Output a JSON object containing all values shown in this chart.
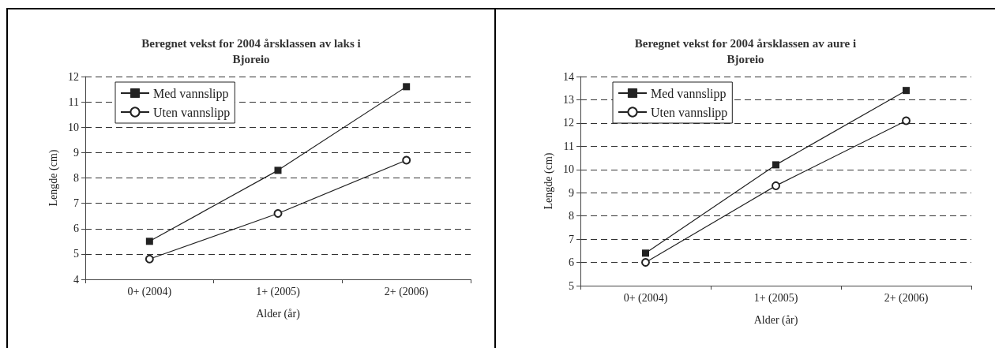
{
  "chart_data": [
    {
      "type": "line",
      "title": "Beregnet vekst for 2004 årsklassen av laks i\nBjoreio",
      "xlabel": "Alder (år)",
      "ylabel": "Lengde (cm)",
      "categories": [
        "0+ (2004)",
        "1+ (2005)",
        "2+ (2006)"
      ],
      "ylim": [
        4,
        12
      ],
      "yticks": [
        4,
        5,
        6,
        7,
        8,
        9,
        10,
        11,
        12
      ],
      "grid": "y",
      "legend": "top left",
      "line_style": "solid",
      "series": [
        {
          "name": "Med vannslipp",
          "color": "#222222",
          "marker": "square",
          "values": [
            5.5,
            8.3,
            11.6
          ]
        },
        {
          "name": "Uten vannslipp",
          "color": "#222222",
          "marker": "circle",
          "values": [
            4.8,
            6.6,
            8.7
          ]
        }
      ]
    },
    {
      "type": "line",
      "title": "Beregnet vekst for 2004 årsklassen av aure i\nBjoreio",
      "xlabel": "Alder (år)",
      "ylabel": "Lengde (cm)",
      "categories": [
        "0+ (2004)",
        "1+ (2005)",
        "2+ (2006)"
      ],
      "ylim": [
        5,
        14
      ],
      "yticks": [
        5,
        6,
        7,
        8,
        9,
        10,
        11,
        12,
        13,
        14
      ],
      "grid": "y",
      "legend": "top left",
      "line_style": "solid",
      "series": [
        {
          "name": "Med vannslipp",
          "color": "#222222",
          "marker": "square",
          "values": [
            6.4,
            10.2,
            13.4
          ]
        },
        {
          "name": "Uten vannslipp",
          "color": "#222222",
          "marker": "circle",
          "values": [
            6.0,
            9.3,
            12.1
          ]
        }
      ]
    }
  ]
}
